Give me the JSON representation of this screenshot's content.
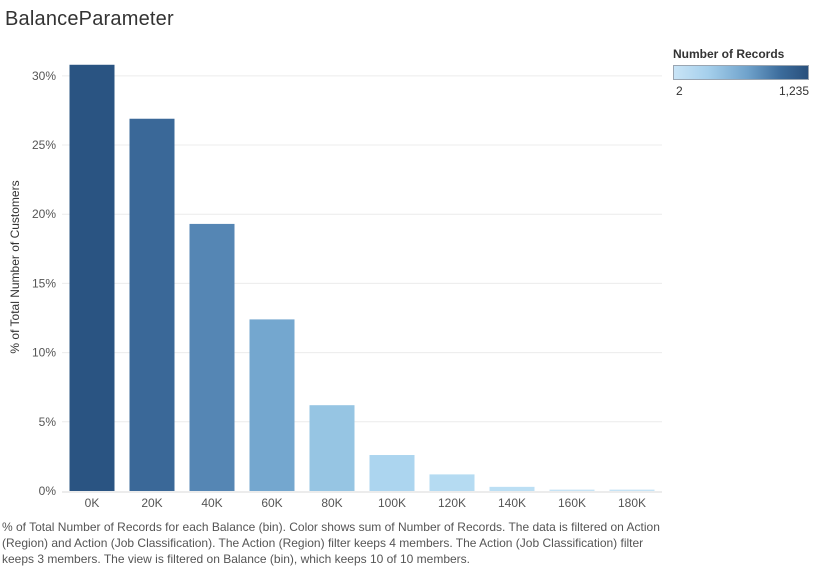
{
  "title": "BalanceParameter",
  "legend": {
    "title": "Number of Records",
    "min_label": "2",
    "max_label": "1,235",
    "min_value": 2,
    "max_value": 1235,
    "color_low": "#c9e4f6",
    "color_high": "#29507c"
  },
  "chart_data": {
    "type": "bar",
    "title": "BalanceParameter",
    "xlabel": "",
    "ylabel": "% of Total Number of Customers",
    "categories": [
      "0K",
      "20K",
      "40K",
      "60K",
      "80K",
      "100K",
      "120K",
      "140K",
      "160K",
      "180K"
    ],
    "values": [
      30.8,
      26.9,
      19.3,
      12.4,
      6.2,
      2.6,
      1.2,
      0.3,
      0.1,
      0.1
    ],
    "value_unit": "%",
    "ylim": [
      0,
      31
    ],
    "yticks": [
      0,
      5,
      10,
      15,
      20,
      25,
      30
    ],
    "ytick_labels": [
      "0%",
      "5%",
      "10%",
      "15%",
      "20%",
      "25%",
      "30%"
    ],
    "grid": true,
    "bar_colors": [
      "#2a5482",
      "#3a6898",
      "#5586b4",
      "#74a7cf",
      "#96c5e3",
      "#acd5ef",
      "#b5dbf2",
      "#bcdff4",
      "#c6e3f5",
      "#c6e3f5"
    ]
  },
  "caption": "% of Total Number of Records for each Balance (bin).  Color shows sum of Number of Records. The data is filtered on Action (Region) and Action (Job Classification). The Action (Region) filter keeps 4 members. The Action (Job Classification) filter keeps 3 members. The view is filtered on Balance (bin), which keeps 10 of 10 members."
}
